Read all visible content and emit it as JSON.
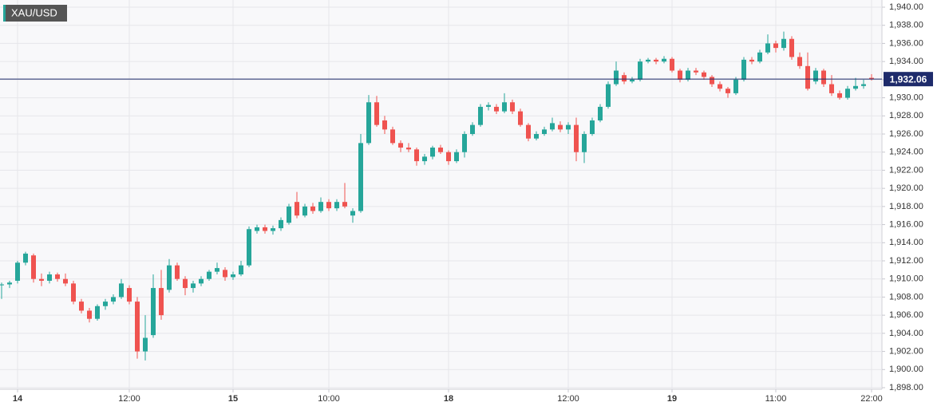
{
  "chart_data": {
    "type": "candlestick",
    "symbol": "XAU/USD",
    "up_color": "#26a69a",
    "down_color": "#ef5350",
    "last_price_color": "#1e2b6b",
    "grid": true,
    "ylim": [
      1898,
      1940
    ],
    "yticks": [
      {
        "value": 1898,
        "label": "1,898.00"
      },
      {
        "value": 1900,
        "label": "1,900.00"
      },
      {
        "value": 1902,
        "label": "1,902.00"
      },
      {
        "value": 1904,
        "label": "1,904.00"
      },
      {
        "value": 1906,
        "label": "1,906.00"
      },
      {
        "value": 1908,
        "label": "1,908.00"
      },
      {
        "value": 1910,
        "label": "1,910.00"
      },
      {
        "value": 1912,
        "label": "1,912.00"
      },
      {
        "value": 1914,
        "label": "1,914.00"
      },
      {
        "value": 1916,
        "label": "1,916.00"
      },
      {
        "value": 1918,
        "label": "1,918.00"
      },
      {
        "value": 1920,
        "label": "1,920.00"
      },
      {
        "value": 1922,
        "label": "1,922.00"
      },
      {
        "value": 1924,
        "label": "1,924.00"
      },
      {
        "value": 1926,
        "label": "1,926.00"
      },
      {
        "value": 1928,
        "label": "1,928.00"
      },
      {
        "value": 1930,
        "label": "1,930.00"
      },
      {
        "value": 1932,
        "label": "1,932.00"
      },
      {
        "value": 1934,
        "label": "1,934.00"
      },
      {
        "value": 1936,
        "label": "1,936.00"
      },
      {
        "value": 1938,
        "label": "1,938.00"
      },
      {
        "value": 1940,
        "label": "1,940.00"
      }
    ],
    "last_price": {
      "value": 1932.06,
      "label": "1,932.06"
    },
    "categories": [
      null,
      null,
      "14",
      null,
      null,
      null,
      null,
      null,
      null,
      null,
      null,
      null,
      null,
      null,
      null,
      null,
      "12:00",
      null,
      null,
      null,
      null,
      null,
      null,
      null,
      null,
      null,
      null,
      null,
      null,
      "15",
      null,
      null,
      null,
      null,
      null,
      null,
      null,
      null,
      null,
      null,
      null,
      "10:00",
      null,
      null,
      null,
      null,
      null,
      null,
      null,
      null,
      null,
      null,
      null,
      null,
      null,
      null,
      "18",
      null,
      null,
      null,
      null,
      null,
      null,
      null,
      null,
      null,
      null,
      null,
      null,
      null,
      null,
      "12:00",
      null,
      null,
      null,
      null,
      null,
      null,
      null,
      null,
      null,
      null,
      null,
      null,
      "19",
      null,
      null,
      null,
      null,
      null,
      null,
      null,
      null,
      null,
      null,
      null,
      null,
      "11:00",
      null,
      null,
      null,
      null,
      null,
      null,
      null,
      null,
      null,
      null,
      null,
      "22:00"
    ],
    "ohlc": [
      [
        1909.3,
        1909.6,
        1907.8,
        1909.4
      ],
      [
        1909.4,
        1909.8,
        1909.0,
        1909.6
      ],
      [
        1909.8,
        1912.0,
        1909.5,
        1911.8
      ],
      [
        1911.8,
        1913.0,
        1911.5,
        1912.8
      ],
      [
        1912.6,
        1912.8,
        1909.6,
        1910.0
      ],
      [
        1910.0,
        1910.6,
        1909.2,
        1909.8
      ],
      [
        1909.8,
        1910.8,
        1909.5,
        1910.5
      ],
      [
        1910.5,
        1910.7,
        1909.7,
        1910.0
      ],
      [
        1910.0,
        1910.6,
        1909.2,
        1909.5
      ],
      [
        1909.5,
        1909.8,
        1907.2,
        1907.5
      ],
      [
        1907.5,
        1907.8,
        1906.2,
        1906.5
      ],
      [
        1906.5,
        1906.8,
        1905.2,
        1905.6
      ],
      [
        1905.6,
        1907.2,
        1905.4,
        1907.0
      ],
      [
        1907.0,
        1907.8,
        1906.6,
        1907.5
      ],
      [
        1907.5,
        1908.3,
        1907.2,
        1908.0
      ],
      [
        1908.0,
        1910.0,
        1907.8,
        1909.5
      ],
      [
        1909.0,
        1909.3,
        1907.2,
        1907.5
      ],
      [
        1907.5,
        1908.0,
        1901.2,
        1902.0
      ],
      [
        1902.0,
        1906.0,
        1901.0,
        1903.5
      ],
      [
        1903.8,
        1910.5,
        1903.5,
        1909.0
      ],
      [
        1909.0,
        1911.0,
        1905.5,
        1906.0
      ],
      [
        1908.8,
        1912.2,
        1908.5,
        1911.5
      ],
      [
        1911.5,
        1911.8,
        1909.8,
        1910.0
      ],
      [
        1910.0,
        1910.3,
        1908.2,
        1909.0
      ],
      [
        1909.0,
        1909.8,
        1908.5,
        1909.5
      ],
      [
        1909.5,
        1910.3,
        1909.2,
        1910.0
      ],
      [
        1910.0,
        1911.0,
        1909.8,
        1910.8
      ],
      [
        1910.8,
        1911.8,
        1910.5,
        1911.2
      ],
      [
        1911.0,
        1911.3,
        1909.8,
        1910.2
      ],
      [
        1910.2,
        1910.8,
        1909.9,
        1910.5
      ],
      [
        1910.5,
        1912.0,
        1910.3,
        1911.5
      ],
      [
        1911.5,
        1915.8,
        1911.3,
        1915.5
      ],
      [
        1915.3,
        1916.0,
        1915.0,
        1915.7
      ],
      [
        1915.7,
        1916.0,
        1915.0,
        1915.3
      ],
      [
        1915.3,
        1915.9,
        1914.9,
        1915.6
      ],
      [
        1915.6,
        1916.8,
        1915.3,
        1916.5
      ],
      [
        1916.2,
        1918.3,
        1916.0,
        1918.0
      ],
      [
        1918.5,
        1919.6,
        1916.7,
        1917.0
      ],
      [
        1917.0,
        1918.3,
        1916.8,
        1918.0
      ],
      [
        1918.0,
        1918.4,
        1917.2,
        1917.5
      ],
      [
        1917.5,
        1919.0,
        1917.3,
        1918.5
      ],
      [
        1918.5,
        1918.8,
        1917.5,
        1917.8
      ],
      [
        1917.8,
        1918.8,
        1917.5,
        1918.5
      ],
      [
        1918.5,
        1920.6,
        1917.8,
        1918.0
      ],
      [
        1917.0,
        1917.8,
        1916.2,
        1917.5
      ],
      [
        1917.5,
        1926.0,
        1917.3,
        1925.0
      ],
      [
        1925.0,
        1930.3,
        1924.8,
        1929.5
      ],
      [
        1929.5,
        1930.2,
        1926.8,
        1927.0
      ],
      [
        1927.5,
        1928.0,
        1926.0,
        1926.5
      ],
      [
        1926.5,
        1926.8,
        1924.8,
        1925.0
      ],
      [
        1925.0,
        1925.3,
        1924.0,
        1924.5
      ],
      [
        1924.5,
        1925.0,
        1924.0,
        1924.3
      ],
      [
        1924.3,
        1924.5,
        1922.5,
        1923.0
      ],
      [
        1923.0,
        1923.8,
        1922.6,
        1923.5
      ],
      [
        1923.5,
        1924.7,
        1923.2,
        1924.5
      ],
      [
        1924.5,
        1924.8,
        1923.8,
        1924.0
      ],
      [
        1924.0,
        1924.2,
        1922.6,
        1923.0
      ],
      [
        1923.0,
        1924.3,
        1922.8,
        1924.0
      ],
      [
        1924.0,
        1926.3,
        1923.4,
        1926.0
      ],
      [
        1926.0,
        1927.3,
        1925.8,
        1927.0
      ],
      [
        1927.0,
        1929.3,
        1926.8,
        1929.0
      ],
      [
        1929.0,
        1929.5,
        1928.6,
        1929.2
      ],
      [
        1929.0,
        1929.3,
        1928.2,
        1928.5
      ],
      [
        1928.5,
        1930.5,
        1928.3,
        1929.5
      ],
      [
        1929.5,
        1929.8,
        1928.2,
        1928.5
      ],
      [
        1928.5,
        1928.8,
        1926.8,
        1927.0
      ],
      [
        1927.0,
        1927.2,
        1925.2,
        1925.5
      ],
      [
        1925.5,
        1926.3,
        1925.3,
        1926.0
      ],
      [
        1926.0,
        1926.8,
        1925.8,
        1926.5
      ],
      [
        1926.5,
        1927.8,
        1926.3,
        1927.2
      ],
      [
        1927.0,
        1927.4,
        1926.2,
        1926.5
      ],
      [
        1926.5,
        1927.3,
        1926.0,
        1927.0
      ],
      [
        1927.0,
        1927.8,
        1923.0,
        1924.0
      ],
      [
        1924.0,
        1926.3,
        1922.8,
        1926.0
      ],
      [
        1926.0,
        1927.8,
        1925.8,
        1927.5
      ],
      [
        1927.5,
        1929.3,
        1927.3,
        1929.0
      ],
      [
        1929.0,
        1931.8,
        1928.8,
        1931.5
      ],
      [
        1931.5,
        1934.0,
        1931.3,
        1933.0
      ],
      [
        1932.5,
        1932.8,
        1931.5,
        1931.8
      ],
      [
        1931.8,
        1932.3,
        1931.6,
        1932.0
      ],
      [
        1932.0,
        1934.3,
        1931.8,
        1934.0
      ],
      [
        1934.0,
        1934.4,
        1933.8,
        1934.2
      ],
      [
        1934.2,
        1934.4,
        1933.7,
        1934.0
      ],
      [
        1934.0,
        1934.6,
        1933.8,
        1934.3
      ],
      [
        1934.3,
        1934.5,
        1932.8,
        1933.0
      ],
      [
        1933.0,
        1933.2,
        1931.7,
        1932.0
      ],
      [
        1932.0,
        1933.3,
        1931.8,
        1933.0
      ],
      [
        1933.0,
        1933.3,
        1932.5,
        1932.8
      ],
      [
        1932.8,
        1933.0,
        1932.0,
        1932.3
      ],
      [
        1932.3,
        1932.5,
        1931.2,
        1931.5
      ],
      [
        1931.5,
        1931.8,
        1930.7,
        1931.0
      ],
      [
        1931.0,
        1931.2,
        1930.0,
        1930.5
      ],
      [
        1930.5,
        1932.3,
        1930.3,
        1932.0
      ],
      [
        1932.0,
        1934.5,
        1931.8,
        1934.2
      ],
      [
        1934.2,
        1934.5,
        1933.7,
        1934.0
      ],
      [
        1934.0,
        1935.3,
        1933.8,
        1935.0
      ],
      [
        1935.0,
        1937.0,
        1934.8,
        1936.0
      ],
      [
        1936.0,
        1936.3,
        1935.0,
        1935.5
      ],
      [
        1935.5,
        1937.3,
        1935.2,
        1936.5
      ],
      [
        1936.5,
        1936.8,
        1934.2,
        1934.5
      ],
      [
        1934.5,
        1935.0,
        1933.2,
        1933.5
      ],
      [
        1933.5,
        1935.0,
        1930.8,
        1931.0
      ],
      [
        1931.8,
        1933.3,
        1931.5,
        1933.0
      ],
      [
        1933.0,
        1933.2,
        1931.2,
        1931.5
      ],
      [
        1931.5,
        1932.5,
        1930.2,
        1930.5
      ],
      [
        1930.5,
        1930.8,
        1929.8,
        1930.0
      ],
      [
        1930.0,
        1931.3,
        1929.8,
        1931.0
      ],
      [
        1931.0,
        1932.2,
        1930.8,
        1931.3
      ],
      [
        1931.3,
        1932.0,
        1931.0,
        1931.5
      ],
      [
        1932.2,
        1932.6,
        1931.9,
        1932.06
      ]
    ]
  }
}
